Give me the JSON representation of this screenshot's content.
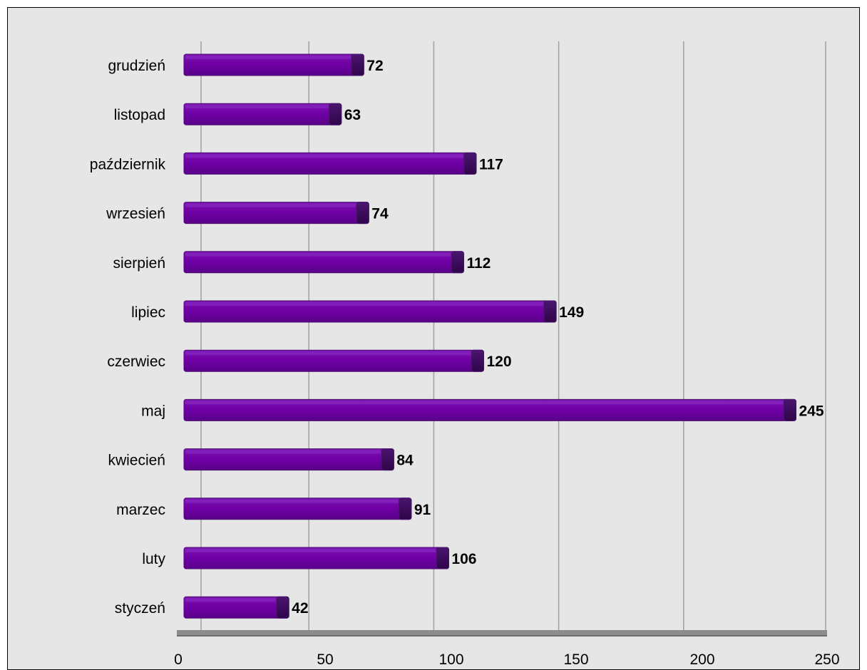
{
  "chart_data": {
    "type": "bar",
    "orientation": "horizontal",
    "categories": [
      "styczeń",
      "luty",
      "marzec",
      "kwiecień",
      "maj",
      "czerwiec",
      "lipiec",
      "sierpień",
      "wrzesień",
      "październik",
      "listopad",
      "grudzień"
    ],
    "values": [
      42,
      106,
      91,
      84,
      245,
      120,
      149,
      112,
      74,
      117,
      63,
      72
    ],
    "xlim": [
      0,
      250
    ],
    "xticks": [
      "0",
      "50",
      "100",
      "150",
      "200",
      "250"
    ],
    "grid": "vertical",
    "legend": "none",
    "colors": {
      "bar": "#6a0099",
      "bar_dark": "#3d0a5c",
      "bar_edge": "#4a1070",
      "background": "#e6e6e6",
      "gridline": "#a0a0a0",
      "axis": "#8c8c8c"
    }
  }
}
